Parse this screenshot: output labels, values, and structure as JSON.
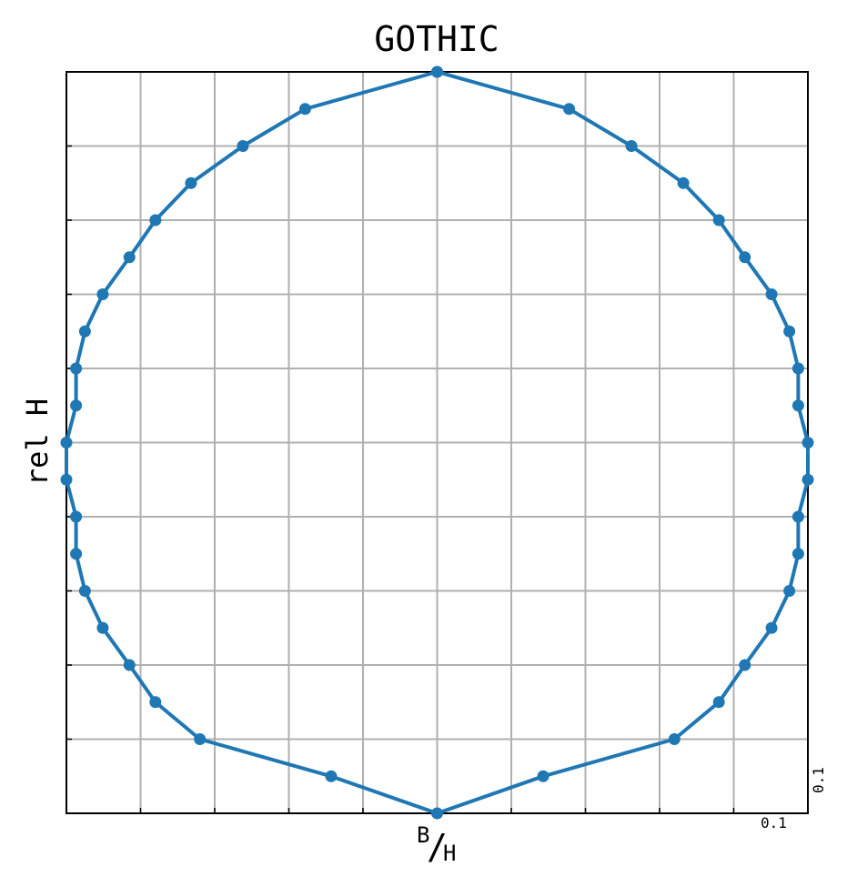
{
  "chart_data": {
    "type": "line",
    "title": "GOTHIC",
    "xlabel_main": "B",
    "xlabel_sub": "H",
    "ylabel": "rel H",
    "scale_x_label": "0.1",
    "scale_y_label": "0.1",
    "xlim": [
      -0.5,
      0.5
    ],
    "ylim": [
      0,
      1
    ],
    "grid": true,
    "legend": false,
    "colors": {
      "series": "#1f77b4",
      "grid": "#b0b0b0",
      "frame": "#000000"
    },
    "series": [
      {
        "points": [
          [
            0.0,
            1.0
          ],
          [
            0.178,
            0.95
          ],
          [
            0.262,
            0.9
          ],
          [
            0.332,
            0.85
          ],
          [
            0.38,
            0.8
          ],
          [
            0.415,
            0.75
          ],
          [
            0.451,
            0.7
          ],
          [
            0.475,
            0.65
          ],
          [
            0.487,
            0.6
          ],
          [
            0.487,
            0.55
          ],
          [
            0.5,
            0.5
          ],
          [
            0.5,
            0.45
          ],
          [
            0.487,
            0.4
          ],
          [
            0.487,
            0.35
          ],
          [
            0.475,
            0.3
          ],
          [
            0.451,
            0.25
          ],
          [
            0.415,
            0.2
          ],
          [
            0.38,
            0.15
          ],
          [
            0.32,
            0.1
          ],
          [
            0.143,
            0.05
          ],
          [
            0.0,
            0.0
          ],
          [
            -0.143,
            0.05
          ],
          [
            -0.32,
            0.1
          ],
          [
            -0.38,
            0.15
          ],
          [
            -0.415,
            0.2
          ],
          [
            -0.451,
            0.25
          ],
          [
            -0.475,
            0.3
          ],
          [
            -0.487,
            0.35
          ],
          [
            -0.487,
            0.4
          ],
          [
            -0.5,
            0.45
          ],
          [
            -0.5,
            0.5
          ],
          [
            -0.487,
            0.55
          ],
          [
            -0.487,
            0.6
          ],
          [
            -0.475,
            0.65
          ],
          [
            -0.451,
            0.7
          ],
          [
            -0.415,
            0.75
          ],
          [
            -0.38,
            0.8
          ],
          [
            -0.332,
            0.85
          ],
          [
            -0.262,
            0.9
          ],
          [
            -0.178,
            0.95
          ],
          [
            0.0,
            1.0
          ]
        ]
      }
    ]
  }
}
